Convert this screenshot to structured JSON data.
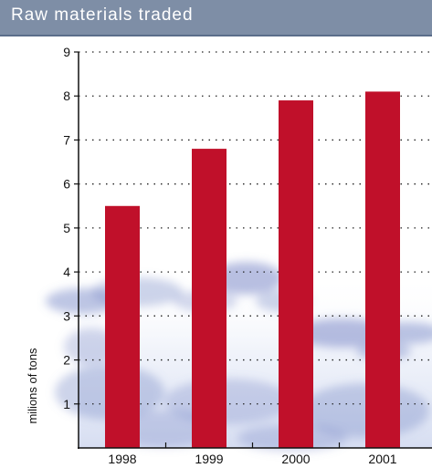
{
  "chart_data": {
    "type": "bar",
    "title": "Raw materials traded",
    "ylabel": "milions of tons",
    "xlabel": "",
    "categories": [
      "1998",
      "1999",
      "2000",
      "2001"
    ],
    "values": [
      5.5,
      6.8,
      7.9,
      8.1
    ],
    "ylim": [
      0,
      9
    ],
    "yticks": [
      1,
      2,
      3,
      4,
      5,
      6,
      7,
      8,
      9
    ],
    "grid": true,
    "legend": "none",
    "colors": {
      "bar": "#c0102a",
      "header_background": "#7e8ea6",
      "grid": "#222222",
      "texture": "#6f80c4"
    }
  }
}
